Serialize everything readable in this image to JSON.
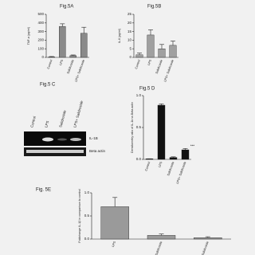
{
  "chart_data": [
    {
      "type": "bar",
      "title": "Fig.5A",
      "y_label": "TNF-α (pg/ml)",
      "categories": [
        "Control",
        "LPS",
        "Salidroside",
        "LPS+ Salidroside"
      ],
      "values": [
        5,
        360,
        20,
        280
      ],
      "errors": [
        5,
        30,
        8,
        70
      ],
      "color": "#8a8a8a",
      "ylim": [
        0,
        500
      ],
      "yticks": [
        0,
        100,
        200,
        300,
        400,
        500
      ]
    },
    {
      "type": "bar",
      "title": "Fig.5B",
      "y_label": "IL-6 (pg/ml)",
      "categories": [
        "Control",
        "LPS",
        "Salidroside",
        "LPS+ Salidroside"
      ],
      "values": [
        1.5,
        13,
        5,
        7
      ],
      "errors": [
        1,
        3,
        2.5,
        2.5
      ],
      "color": "#a0a0a0",
      "ylim": [
        0,
        25
      ],
      "yticks": [
        0,
        5,
        10,
        15,
        20,
        25
      ]
    },
    {
      "type": "bar",
      "title": "Fig.5 D",
      "y_label": "Densitometry ratio of IL-1b vs Beta actin",
      "categories": [
        "Control",
        "LPS",
        "Salidroside",
        "LPS+ Salidroside"
      ],
      "values": [
        0.01,
        0.85,
        0.03,
        0.15
      ],
      "errors": [
        0,
        0.02,
        0.01,
        0.02
      ],
      "color": "#111111",
      "annotation": "***",
      "ylim": [
        0,
        1.0
      ],
      "yticks": [
        {
          "value": 0,
          "label": "0.0"
        },
        {
          "value": 0.5,
          "label": "0.5"
        },
        {
          "value": 1.0,
          "label": "1.0"
        }
      ]
    },
    {
      "type": "bar",
      "title": "Fig. 5E",
      "y_label": "Foldchange IL-1β in comparison to control",
      "categories": [
        "LPS",
        "Salidroside",
        "LPS+Salidroside"
      ],
      "values": [
        0.7,
        0.08,
        0.03
      ],
      "errors": [
        0.2,
        0.03,
        0.02
      ],
      "color": "#9a9a9a",
      "ylim": [
        0,
        1.0
      ],
      "yticks": [
        {
          "value": 0,
          "label": "0.0"
        },
        {
          "value": 0.5,
          "label": "0.5"
        },
        {
          "value": 1.0,
          "label": "1.0"
        }
      ]
    }
  ],
  "blot": {
    "title": "Fig.5 C",
    "lanes": [
      "Control",
      "LPS",
      "Salidroside",
      "LPS+ Salidroside"
    ],
    "bands": [
      "IL-1B",
      "Beta actin"
    ]
  }
}
